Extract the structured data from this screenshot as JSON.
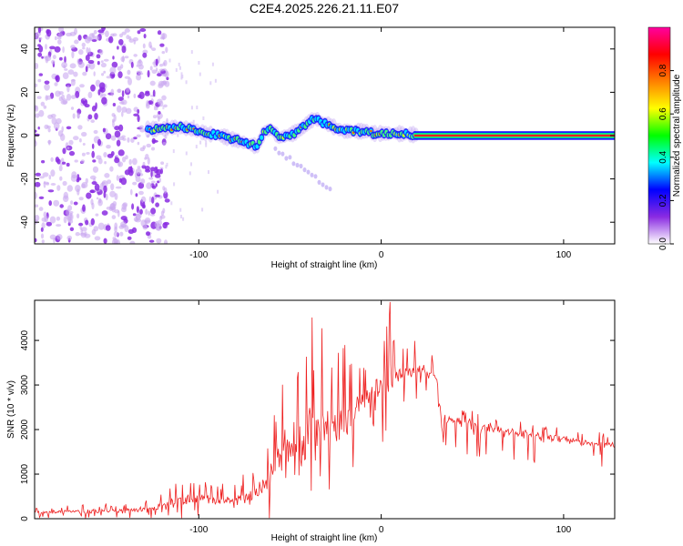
{
  "title": "C2E4.2025.226.21.11.E07",
  "chart_data": [
    {
      "type": "heatmap",
      "panel": "top",
      "xlabel": "Height of straight line (km)",
      "ylabel": "Frequency (Hz)",
      "xlim": [
        -190,
        128
      ],
      "ylim": [
        -50,
        50
      ],
      "xticks": [
        -100,
        0,
        100
      ],
      "yticks": [
        -40,
        -20,
        0,
        20,
        40
      ],
      "noise_region_x": [
        -190,
        -120
      ],
      "signal_trace": {
        "x": [
          -128,
          -120,
          -112,
          -104,
          -96,
          -88,
          -80,
          -72,
          -68,
          -64,
          -60,
          -56,
          -52,
          -48,
          -44,
          -40,
          -36,
          -32,
          -28,
          -24,
          -20,
          -16,
          -12,
          -8,
          -4,
          0,
          8,
          16,
          24,
          40,
          60,
          80,
          100,
          128
        ],
        "y": [
          3,
          3,
          4,
          3,
          1,
          0,
          -2,
          -4,
          -5,
          2,
          3,
          -1,
          0,
          1,
          3,
          6,
          8,
          6,
          5,
          3,
          2,
          2,
          2,
          2,
          1,
          1,
          1,
          0.5,
          0.3,
          0.2,
          0.1,
          0.1,
          0.1,
          0.1
        ]
      },
      "colorbar": {
        "label": "Normalized spectral amplitude",
        "ticks": [
          "0.0",
          "0.2",
          "0.4",
          "0.6",
          "0.8"
        ],
        "range": [
          0,
          1
        ],
        "colors": [
          "#ffffff",
          "#8a2be2",
          "#0000ff",
          "#00ffff",
          "#00ff00",
          "#ffff00",
          "#ff8000",
          "#ff0000",
          "#ff00a0"
        ]
      }
    },
    {
      "type": "line",
      "panel": "bottom",
      "xlabel": "Height of straight line (km)",
      "ylabel": "SNR (10 * v/v)",
      "xlim": [
        -190,
        128
      ],
      "ylim": [
        0,
        4900
      ],
      "xticks": [
        -100,
        0,
        100
      ],
      "yticks": [
        0,
        1000,
        2000,
        3000,
        4000
      ],
      "color": "#ee2222",
      "envelope": {
        "x": [
          -190,
          -150,
          -125,
          -115,
          -100,
          -85,
          -70,
          -62,
          -55,
          -50,
          -45,
          -40,
          -35,
          -30,
          -25,
          -20,
          -10,
          0,
          5,
          10,
          20,
          25,
          30,
          33,
          40,
          60,
          80,
          100,
          128
        ],
        "base": [
          130,
          160,
          210,
          350,
          400,
          350,
          450,
          800,
          1300,
          1500,
          1500,
          1400,
          1600,
          1800,
          1600,
          2000,
          2500,
          2900,
          3100,
          3200,
          3300,
          3300,
          3200,
          2300,
          2200,
          2050,
          1900,
          1800,
          1650
        ],
        "peak": [
          300,
          350,
          420,
          900,
          900,
          800,
          1100,
          2000,
          3000,
          3700,
          4000,
          4600,
          4500,
          4100,
          3800,
          3900,
          3800,
          4000,
          4900,
          4000,
          4000,
          3800,
          3600,
          2600,
          2500,
          2350,
          2150,
          2050,
          1900
        ],
        "dip": [
          0,
          0,
          0,
          0,
          0,
          0,
          0,
          0,
          100,
          100,
          100,
          100,
          300,
          400,
          500,
          600,
          1200,
          1600,
          2000,
          2300,
          2700,
          2600,
          2500,
          1600,
          1500,
          1300,
          1200,
          1200,
          1100
        ]
      }
    }
  ]
}
